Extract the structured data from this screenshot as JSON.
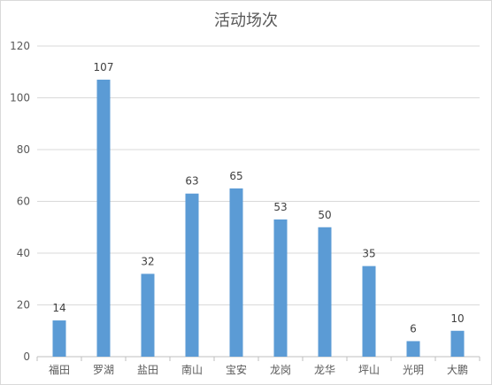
{
  "chart_data": {
    "type": "bar",
    "title": "活动场次",
    "categories": [
      "福田",
      "罗湖",
      "盐田",
      "南山",
      "宝安",
      "龙岗",
      "龙华",
      "坪山",
      "光明",
      "大鹏"
    ],
    "values": [
      14,
      107,
      32,
      63,
      65,
      53,
      50,
      35,
      6,
      10
    ],
    "ylim": [
      0,
      120
    ],
    "yticks": [
      0,
      20,
      40,
      60,
      80,
      100,
      120
    ],
    "grid": true,
    "legend": "none",
    "data_labels": true,
    "bar_color": "#5b9bd5",
    "grid_color": "#d9d9d9"
  }
}
